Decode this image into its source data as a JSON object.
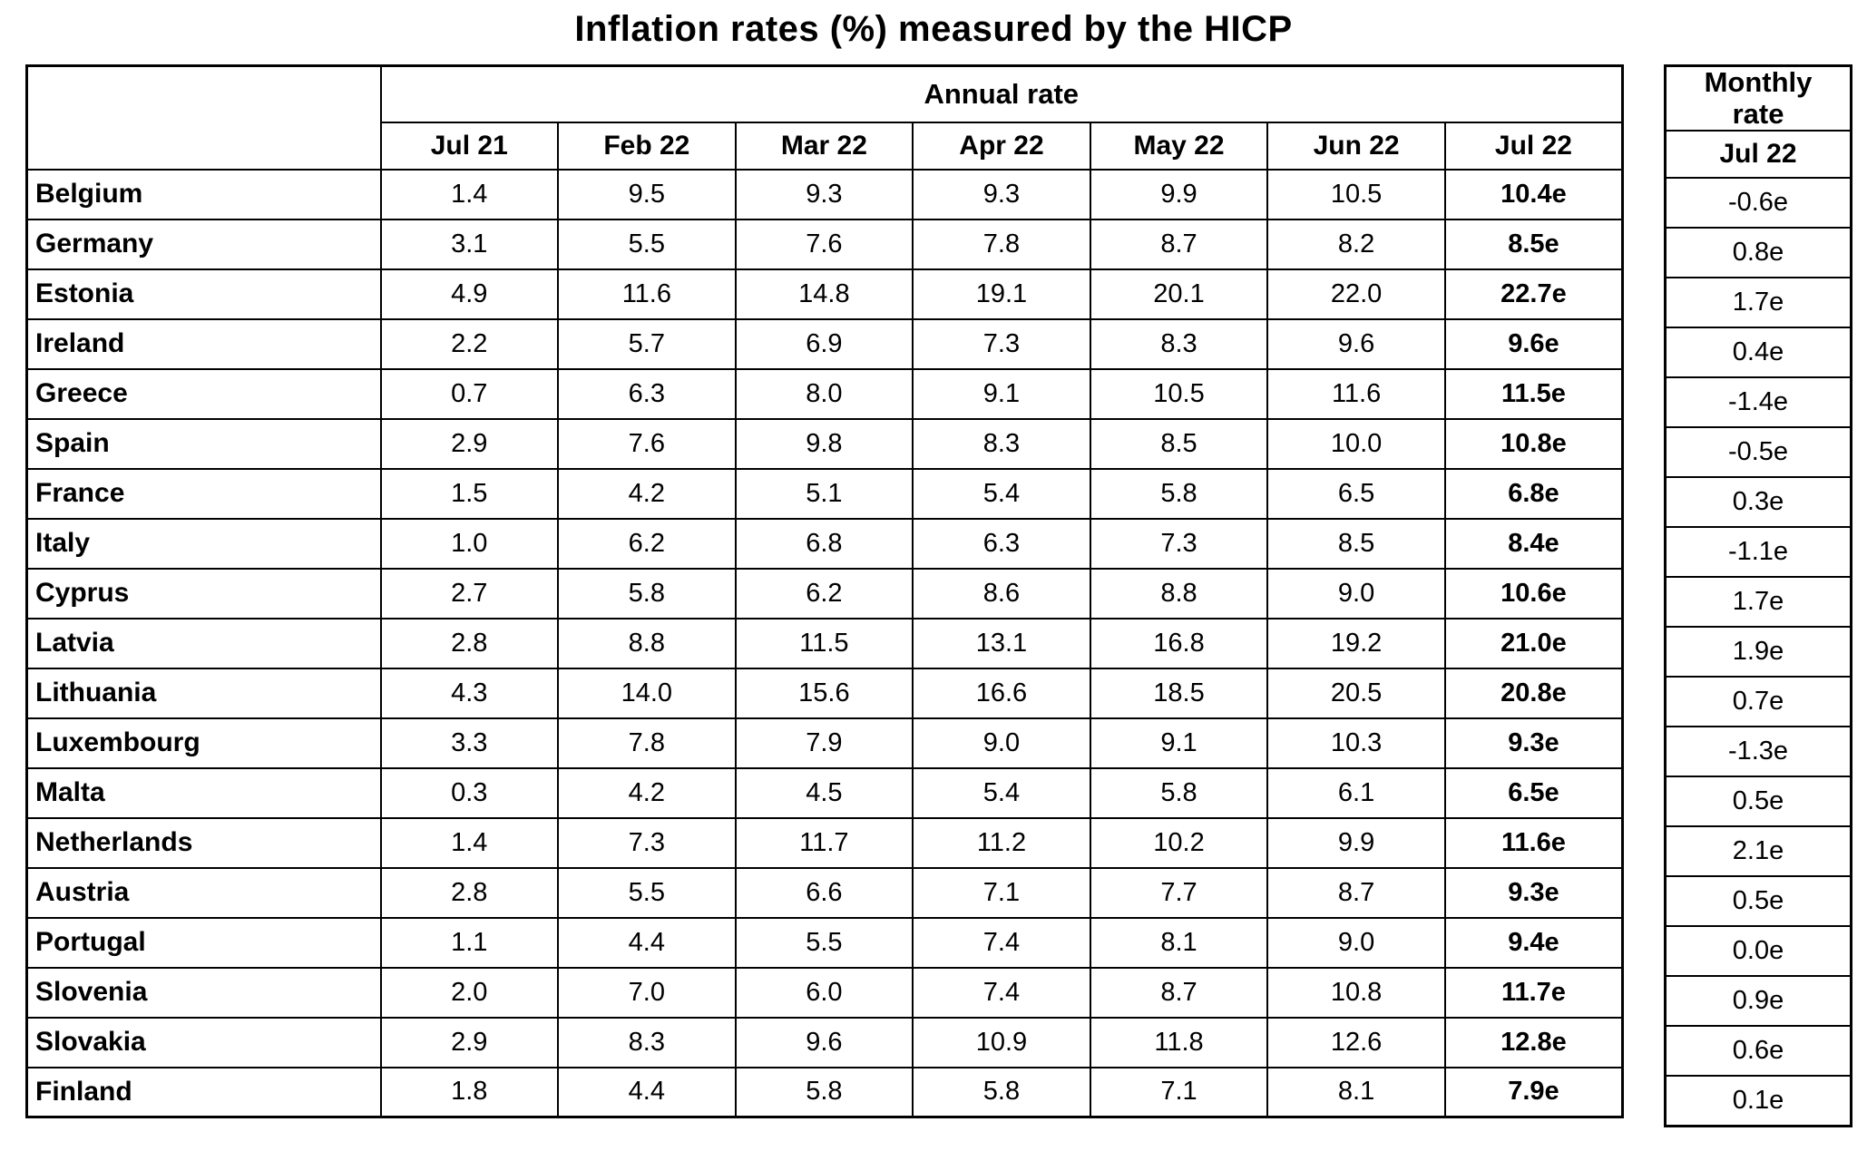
{
  "chart_data": {
    "type": "table",
    "title": "Inflation rates (%) measured by the HICP",
    "groups": {
      "annual": "Annual rate",
      "monthly": "Monthly\nrate"
    },
    "annual_columns": [
      "Jul 21",
      "Feb 22",
      "Mar 22",
      "Apr 22",
      "May 22",
      "Jun 22",
      "Jul 22"
    ],
    "monthly_column": "Jul 22",
    "rows": [
      {
        "country": "Belgium",
        "annual": [
          "1.4",
          "9.5",
          "9.3",
          "9.3",
          "9.9",
          "10.5",
          "10.4e"
        ],
        "monthly": "-0.6e"
      },
      {
        "country": "Germany",
        "annual": [
          "3.1",
          "5.5",
          "7.6",
          "7.8",
          "8.7",
          "8.2",
          "8.5e"
        ],
        "monthly": "0.8e"
      },
      {
        "country": "Estonia",
        "annual": [
          "4.9",
          "11.6",
          "14.8",
          "19.1",
          "20.1",
          "22.0",
          "22.7e"
        ],
        "monthly": "1.7e"
      },
      {
        "country": "Ireland",
        "annual": [
          "2.2",
          "5.7",
          "6.9",
          "7.3",
          "8.3",
          "9.6",
          "9.6e"
        ],
        "monthly": "0.4e"
      },
      {
        "country": "Greece",
        "annual": [
          "0.7",
          "6.3",
          "8.0",
          "9.1",
          "10.5",
          "11.6",
          "11.5e"
        ],
        "monthly": "-1.4e"
      },
      {
        "country": "Spain",
        "annual": [
          "2.9",
          "7.6",
          "9.8",
          "8.3",
          "8.5",
          "10.0",
          "10.8e"
        ],
        "monthly": "-0.5e"
      },
      {
        "country": "France",
        "annual": [
          "1.5",
          "4.2",
          "5.1",
          "5.4",
          "5.8",
          "6.5",
          "6.8e"
        ],
        "monthly": "0.3e"
      },
      {
        "country": "Italy",
        "annual": [
          "1.0",
          "6.2",
          "6.8",
          "6.3",
          "7.3",
          "8.5",
          "8.4e"
        ],
        "monthly": "-1.1e"
      },
      {
        "country": "Cyprus",
        "annual": [
          "2.7",
          "5.8",
          "6.2",
          "8.6",
          "8.8",
          "9.0",
          "10.6e"
        ],
        "monthly": "1.7e"
      },
      {
        "country": "Latvia",
        "annual": [
          "2.8",
          "8.8",
          "11.5",
          "13.1",
          "16.8",
          "19.2",
          "21.0e"
        ],
        "monthly": "1.9e"
      },
      {
        "country": "Lithuania",
        "annual": [
          "4.3",
          "14.0",
          "15.6",
          "16.6",
          "18.5",
          "20.5",
          "20.8e"
        ],
        "monthly": "0.7e"
      },
      {
        "country": "Luxembourg",
        "annual": [
          "3.3",
          "7.8",
          "7.9",
          "9.0",
          "9.1",
          "10.3",
          "9.3e"
        ],
        "monthly": "-1.3e"
      },
      {
        "country": "Malta",
        "annual": [
          "0.3",
          "4.2",
          "4.5",
          "5.4",
          "5.8",
          "6.1",
          "6.5e"
        ],
        "monthly": "0.5e"
      },
      {
        "country": "Netherlands",
        "annual": [
          "1.4",
          "7.3",
          "11.7",
          "11.2",
          "10.2",
          "9.9",
          "11.6e"
        ],
        "monthly": "2.1e"
      },
      {
        "country": "Austria",
        "annual": [
          "2.8",
          "5.5",
          "6.6",
          "7.1",
          "7.7",
          "8.7",
          "9.3e"
        ],
        "monthly": "0.5e"
      },
      {
        "country": "Portugal",
        "annual": [
          "1.1",
          "4.4",
          "5.5",
          "7.4",
          "8.1",
          "9.0",
          "9.4e"
        ],
        "monthly": "0.0e"
      },
      {
        "country": "Slovenia",
        "annual": [
          "2.0",
          "7.0",
          "6.0",
          "7.4",
          "8.7",
          "10.8",
          "11.7e"
        ],
        "monthly": "0.9e"
      },
      {
        "country": "Slovakia",
        "annual": [
          "2.9",
          "8.3",
          "9.6",
          "10.9",
          "11.8",
          "12.6",
          "12.8e"
        ],
        "monthly": "0.6e"
      },
      {
        "country": "Finland",
        "annual": [
          "1.8",
          "4.4",
          "5.8",
          "5.8",
          "7.1",
          "8.1",
          "7.9e"
        ],
        "monthly": "0.1e"
      }
    ]
  }
}
